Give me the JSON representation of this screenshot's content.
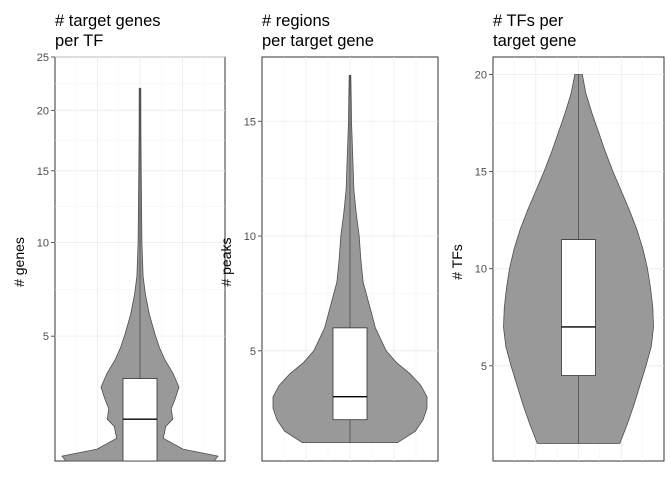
{
  "chart_data": [
    {
      "type": "violin",
      "title": [
        "# target genes",
        "per TF"
      ],
      "ylabel": "# genes",
      "y_scale": "sqrt",
      "ylim": [
        1,
        25
      ],
      "yticks": [
        5,
        10,
        15,
        20,
        25
      ],
      "grid": true,
      "box": {
        "min": 1,
        "q1": 1,
        "median": 2,
        "q3": 3.3,
        "max": 22
      },
      "density": [
        [
          1,
          0.95
        ],
        [
          1.1,
          1
        ],
        [
          1.25,
          0.55
        ],
        [
          1.5,
          0.3
        ],
        [
          1.8,
          0.33
        ],
        [
          2,
          0.42
        ],
        [
          2.3,
          0.4
        ],
        [
          2.6,
          0.45
        ],
        [
          3,
          0.5
        ],
        [
          3.5,
          0.42
        ],
        [
          4,
          0.32
        ],
        [
          4.5,
          0.25
        ],
        [
          5,
          0.2
        ],
        [
          6,
          0.12
        ],
        [
          7,
          0.07
        ],
        [
          8,
          0.04
        ],
        [
          10,
          0.025
        ],
        [
          12,
          0.02
        ],
        [
          15,
          0.015
        ],
        [
          18,
          0.012
        ],
        [
          22,
          0.01
        ]
      ],
      "violin_color": "#999999"
    },
    {
      "type": "violin",
      "title": [
        "# regions",
        "per target gene"
      ],
      "ylabel": "# peaks",
      "y_scale": "linear",
      "ylim": [
        0.2,
        17.8
      ],
      "yticks": [
        5,
        10,
        15
      ],
      "grid": true,
      "box": {
        "min": 1,
        "q1": 2,
        "median": 3,
        "q3": 6,
        "max": 17
      },
      "density": [
        [
          1,
          0.62
        ],
        [
          1.5,
          0.85
        ],
        [
          2,
          0.95
        ],
        [
          2.5,
          1
        ],
        [
          3,
          1
        ],
        [
          3.5,
          0.92
        ],
        [
          4,
          0.78
        ],
        [
          4.5,
          0.6
        ],
        [
          5,
          0.47
        ],
        [
          6,
          0.33
        ],
        [
          7,
          0.25
        ],
        [
          8,
          0.17
        ],
        [
          9,
          0.14
        ],
        [
          10,
          0.12
        ],
        [
          11,
          0.08
        ],
        [
          12,
          0.05
        ],
        [
          13,
          0.04
        ],
        [
          14,
          0.03
        ],
        [
          15,
          0.02
        ],
        [
          16,
          0.015
        ],
        [
          17,
          0.01
        ]
      ],
      "violin_color": "#999999"
    },
    {
      "type": "violin",
      "title": [
        "# TFs per",
        "target gene"
      ],
      "ylabel": "# TFs",
      "y_scale": "linear",
      "ylim": [
        0.1,
        20.9
      ],
      "yticks": [
        5,
        10,
        15,
        20
      ],
      "grid": true,
      "box": {
        "min": 1,
        "q1": 4.5,
        "median": 7,
        "q3": 11.5,
        "max": 20
      },
      "density": [
        [
          1,
          0.55
        ],
        [
          2,
          0.65
        ],
        [
          3,
          0.74
        ],
        [
          4,
          0.82
        ],
        [
          5,
          0.9
        ],
        [
          6,
          0.97
        ],
        [
          7,
          1
        ],
        [
          8,
          0.99
        ],
        [
          9,
          0.96
        ],
        [
          10,
          0.92
        ],
        [
          11,
          0.86
        ],
        [
          12,
          0.78
        ],
        [
          13,
          0.68
        ],
        [
          14,
          0.57
        ],
        [
          15,
          0.46
        ],
        [
          16,
          0.36
        ],
        [
          17,
          0.27
        ],
        [
          18,
          0.18
        ],
        [
          19,
          0.1
        ],
        [
          20,
          0.05
        ]
      ],
      "violin_color": "#999999"
    }
  ]
}
